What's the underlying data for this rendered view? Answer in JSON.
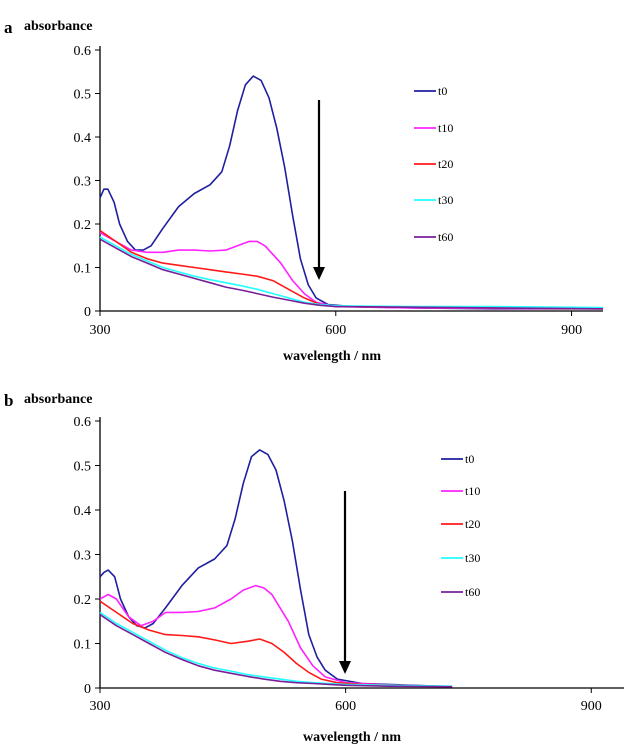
{
  "chart_data": [
    {
      "panel": "a",
      "type": "line",
      "title": "",
      "ylabel": "absorbance",
      "xlabel": "wavelength / nm",
      "xlim": [
        300,
        940
      ],
      "ylim": [
        0,
        0.6
      ],
      "xticks": [
        300,
        600,
        900
      ],
      "yticks": [
        0,
        0.1,
        0.2,
        0.3,
        0.4,
        0.5,
        0.6
      ],
      "ytick_labels": [
        "0",
        "0.1",
        "0.2",
        "0.3",
        "0.4",
        "0.5",
        "0.6"
      ],
      "legend_position": "right",
      "annotation": "downward arrow",
      "grid": false,
      "series": [
        {
          "name": "t0",
          "color": "#1f1f9f",
          "points": [
            [
              300,
              0.26
            ],
            [
              305,
              0.28
            ],
            [
              310,
              0.28
            ],
            [
              318,
              0.25
            ],
            [
              325,
              0.2
            ],
            [
              335,
              0.16
            ],
            [
              345,
              0.14
            ],
            [
              355,
              0.14
            ],
            [
              365,
              0.15
            ],
            [
              380,
              0.19
            ],
            [
              400,
              0.24
            ],
            [
              420,
              0.27
            ],
            [
              440,
              0.29
            ],
            [
              455,
              0.32
            ],
            [
              465,
              0.38
            ],
            [
              475,
              0.46
            ],
            [
              485,
              0.52
            ],
            [
              495,
              0.54
            ],
            [
              505,
              0.53
            ],
            [
              515,
              0.49
            ],
            [
              525,
              0.42
            ],
            [
              535,
              0.33
            ],
            [
              545,
              0.22
            ],
            [
              555,
              0.12
            ],
            [
              565,
              0.06
            ],
            [
              575,
              0.03
            ],
            [
              590,
              0.015
            ],
            [
              620,
              0.01
            ],
            [
              700,
              0.007
            ],
            [
              800,
              0.005
            ],
            [
              940,
              0.005
            ]
          ]
        },
        {
          "name": "t10",
          "color": "#ff22ff",
          "points": [
            [
              300,
              0.18
            ],
            [
              320,
              0.16
            ],
            [
              340,
              0.14
            ],
            [
              360,
              0.135
            ],
            [
              380,
              0.135
            ],
            [
              400,
              0.14
            ],
            [
              420,
              0.14
            ],
            [
              440,
              0.138
            ],
            [
              460,
              0.14
            ],
            [
              475,
              0.15
            ],
            [
              490,
              0.16
            ],
            [
              500,
              0.16
            ],
            [
              510,
              0.15
            ],
            [
              520,
              0.13
            ],
            [
              530,
              0.11
            ],
            [
              545,
              0.07
            ],
            [
              560,
              0.04
            ],
            [
              575,
              0.02
            ],
            [
              600,
              0.01
            ],
            [
              700,
              0.007
            ],
            [
              940,
              0.005
            ]
          ]
        },
        {
          "name": "t20",
          "color": "#ff1a1a",
          "points": [
            [
              300,
              0.185
            ],
            [
              320,
              0.16
            ],
            [
              340,
              0.135
            ],
            [
              360,
              0.12
            ],
            [
              380,
              0.11
            ],
            [
              400,
              0.105
            ],
            [
              420,
              0.1
            ],
            [
              440,
              0.095
            ],
            [
              460,
              0.09
            ],
            [
              480,
              0.085
            ],
            [
              500,
              0.08
            ],
            [
              520,
              0.07
            ],
            [
              540,
              0.05
            ],
            [
              560,
              0.03
            ],
            [
              580,
              0.015
            ],
            [
              600,
              0.01
            ],
            [
              940,
              0.005
            ]
          ]
        },
        {
          "name": "t30",
          "color": "#22ffff",
          "points": [
            [
              300,
              0.17
            ],
            [
              320,
              0.15
            ],
            [
              340,
              0.13
            ],
            [
              360,
              0.115
            ],
            [
              380,
              0.1
            ],
            [
              400,
              0.09
            ],
            [
              420,
              0.08
            ],
            [
              440,
              0.072
            ],
            [
              460,
              0.065
            ],
            [
              480,
              0.058
            ],
            [
              500,
              0.05
            ],
            [
              520,
              0.04
            ],
            [
              540,
              0.03
            ],
            [
              560,
              0.02
            ],
            [
              580,
              0.015
            ],
            [
              600,
              0.012
            ],
            [
              700,
              0.01
            ],
            [
              800,
              0.01
            ],
            [
              940,
              0.008
            ]
          ]
        },
        {
          "name": "t60",
          "color": "#7a1f9a",
          "points": [
            [
              300,
              0.165
            ],
            [
              320,
              0.145
            ],
            [
              340,
              0.125
            ],
            [
              360,
              0.11
            ],
            [
              380,
              0.095
            ],
            [
              400,
              0.085
            ],
            [
              420,
              0.075
            ],
            [
              440,
              0.065
            ],
            [
              460,
              0.055
            ],
            [
              480,
              0.048
            ],
            [
              500,
              0.04
            ],
            [
              520,
              0.032
            ],
            [
              540,
              0.025
            ],
            [
              560,
              0.018
            ],
            [
              580,
              0.013
            ],
            [
              600,
              0.01
            ],
            [
              940,
              0.005
            ]
          ]
        }
      ]
    },
    {
      "panel": "b",
      "type": "line",
      "title": "",
      "ylabel": "absorbance",
      "xlabel": "wavelength / nm",
      "xlim": [
        300,
        940
      ],
      "ylim": [
        0,
        0.6
      ],
      "xticks": [
        300,
        600,
        900
      ],
      "yticks": [
        0,
        0.1,
        0.2,
        0.3,
        0.4,
        0.5,
        0.6
      ],
      "ytick_labels": [
        "0",
        "0.1",
        "0.2",
        "0.3",
        "0.4",
        "0.5",
        "0.6"
      ],
      "legend_position": "right",
      "annotation": "downward arrow",
      "grid": false,
      "series": [
        {
          "name": "t0",
          "color": "#1f1f9f",
          "points": [
            [
              300,
              0.25
            ],
            [
              305,
              0.26
            ],
            [
              310,
              0.265
            ],
            [
              318,
              0.25
            ],
            [
              325,
              0.2
            ],
            [
              335,
              0.16
            ],
            [
              345,
              0.14
            ],
            [
              355,
              0.135
            ],
            [
              365,
              0.145
            ],
            [
              380,
              0.18
            ],
            [
              400,
              0.23
            ],
            [
              420,
              0.27
            ],
            [
              440,
              0.29
            ],
            [
              455,
              0.32
            ],
            [
              465,
              0.38
            ],
            [
              475,
              0.46
            ],
            [
              485,
              0.52
            ],
            [
              495,
              0.535
            ],
            [
              505,
              0.525
            ],
            [
              515,
              0.49
            ],
            [
              525,
              0.42
            ],
            [
              535,
              0.33
            ],
            [
              545,
              0.22
            ],
            [
              555,
              0.12
            ],
            [
              565,
              0.07
            ],
            [
              575,
              0.04
            ],
            [
              590,
              0.02
            ],
            [
              620,
              0.01
            ],
            [
              700,
              0.005
            ],
            [
              730,
              0.003
            ]
          ]
        },
        {
          "name": "t10",
          "color": "#ff22ff",
          "points": [
            [
              300,
              0.2
            ],
            [
              310,
              0.21
            ],
            [
              320,
              0.2
            ],
            [
              335,
              0.16
            ],
            [
              350,
              0.14
            ],
            [
              365,
              0.15
            ],
            [
              380,
              0.17
            ],
            [
              400,
              0.17
            ],
            [
              420,
              0.172
            ],
            [
              440,
              0.18
            ],
            [
              460,
              0.2
            ],
            [
              475,
              0.22
            ],
            [
              490,
              0.23
            ],
            [
              500,
              0.225
            ],
            [
              510,
              0.21
            ],
            [
              520,
              0.18
            ],
            [
              530,
              0.15
            ],
            [
              545,
              0.09
            ],
            [
              560,
              0.05
            ],
            [
              575,
              0.025
            ],
            [
              600,
              0.012
            ],
            [
              650,
              0.007
            ],
            [
              730,
              0.003
            ]
          ]
        },
        {
          "name": "t20",
          "color": "#ff1a1a",
          "points": [
            [
              300,
              0.195
            ],
            [
              320,
              0.17
            ],
            [
              340,
              0.145
            ],
            [
              360,
              0.13
            ],
            [
              380,
              0.12
            ],
            [
              400,
              0.118
            ],
            [
              420,
              0.115
            ],
            [
              440,
              0.108
            ],
            [
              460,
              0.1
            ],
            [
              480,
              0.105
            ],
            [
              495,
              0.11
            ],
            [
              510,
              0.1
            ],
            [
              525,
              0.08
            ],
            [
              540,
              0.055
            ],
            [
              555,
              0.035
            ],
            [
              570,
              0.02
            ],
            [
              590,
              0.012
            ],
            [
              620,
              0.008
            ],
            [
              700,
              0.004
            ],
            [
              730,
              0.003
            ]
          ]
        },
        {
          "name": "t30",
          "color": "#22ffff",
          "points": [
            [
              300,
              0.17
            ],
            [
              320,
              0.145
            ],
            [
              340,
              0.125
            ],
            [
              360,
              0.105
            ],
            [
              380,
              0.085
            ],
            [
              400,
              0.068
            ],
            [
              420,
              0.055
            ],
            [
              440,
              0.045
            ],
            [
              460,
              0.038
            ],
            [
              480,
              0.03
            ],
            [
              500,
              0.025
            ],
            [
              520,
              0.02
            ],
            [
              540,
              0.015
            ],
            [
              560,
              0.012
            ],
            [
              580,
              0.01
            ],
            [
              600,
              0.008
            ],
            [
              650,
              0.006
            ],
            [
              730,
              0.004
            ]
          ]
        },
        {
          "name": "t60",
          "color": "#7a1f9a",
          "points": [
            [
              300,
              0.165
            ],
            [
              320,
              0.14
            ],
            [
              340,
              0.12
            ],
            [
              360,
              0.1
            ],
            [
              380,
              0.08
            ],
            [
              400,
              0.064
            ],
            [
              420,
              0.05
            ],
            [
              440,
              0.04
            ],
            [
              460,
              0.033
            ],
            [
              480,
              0.026
            ],
            [
              500,
              0.02
            ],
            [
              520,
              0.015
            ],
            [
              540,
              0.012
            ],
            [
              560,
              0.01
            ],
            [
              580,
              0.008
            ],
            [
              600,
              0.006
            ],
            [
              650,
              0.004
            ],
            [
              730,
              0.003
            ]
          ]
        }
      ]
    }
  ]
}
